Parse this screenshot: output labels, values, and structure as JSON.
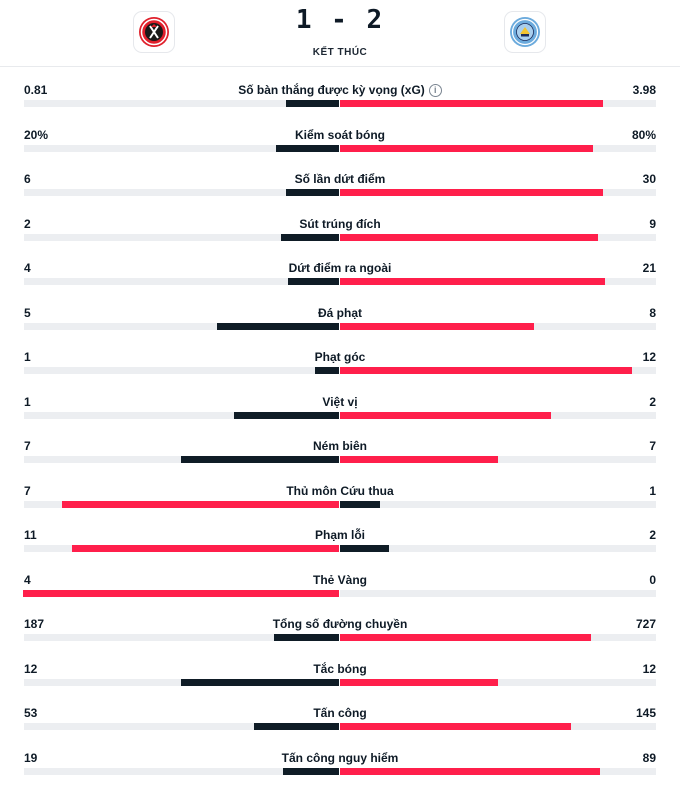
{
  "colors": {
    "dark": "#0f1c26",
    "red": "#ff1f4b",
    "track": "#eceef1"
  },
  "header": {
    "score": "1 - 2",
    "status": "KẾT THÚC",
    "home_logo_icon": "sheffield-united-crest-icon",
    "away_logo_icon": "manchester-city-crest-icon"
  },
  "stats": [
    {
      "label": "Số bàn thắng được kỳ vọng (xG)",
      "home": "0.81",
      "away": "3.98",
      "home_share": 0.169,
      "away_share": 0.831,
      "info": "i"
    },
    {
      "label": "Kiểm soát bóng",
      "home": "20%",
      "away": "80%",
      "home_share": 0.2,
      "away_share": 0.8
    },
    {
      "label": "Số lần dứt điểm",
      "home": "6",
      "away": "30",
      "home_share": 0.167,
      "away_share": 0.833
    },
    {
      "label": "Sút trúng đích",
      "home": "2",
      "away": "9",
      "home_share": 0.182,
      "away_share": 0.818
    },
    {
      "label": "Dứt điểm ra ngoài",
      "home": "4",
      "away": "21",
      "home_share": 0.16,
      "away_share": 0.84
    },
    {
      "label": "Đá phạt",
      "home": "5",
      "away": "8",
      "home_share": 0.385,
      "away_share": 0.615
    },
    {
      "label": "Phạt góc",
      "home": "1",
      "away": "12",
      "home_share": 0.077,
      "away_share": 0.923
    },
    {
      "label": "Việt vị",
      "home": "1",
      "away": "2",
      "home_share": 0.333,
      "away_share": 0.667
    },
    {
      "label": "Ném biên",
      "home": "7",
      "away": "7",
      "home_share": 0.5,
      "away_share": 0.5
    },
    {
      "label": "Thủ môn Cứu thua",
      "home": "7",
      "away": "1",
      "home_share": 0.875,
      "away_share": 0.125
    },
    {
      "label": "Phạm lỗi",
      "home": "11",
      "away": "2",
      "home_share": 0.846,
      "away_share": 0.154
    },
    {
      "label": "Thẻ Vàng",
      "home": "4",
      "away": "0",
      "home_share": 1.0,
      "away_share": 0.0
    },
    {
      "label": "Tổng số đường chuyền",
      "home": "187",
      "away": "727",
      "home_share": 0.205,
      "away_share": 0.795
    },
    {
      "label": "Tắc bóng",
      "home": "12",
      "away": "12",
      "home_share": 0.5,
      "away_share": 0.5
    },
    {
      "label": "Tấn công",
      "home": "53",
      "away": "145",
      "home_share": 0.268,
      "away_share": 0.732
    },
    {
      "label": "Tấn công nguy hiểm",
      "home": "19",
      "away": "89",
      "home_share": 0.176,
      "away_share": 0.824
    }
  ]
}
